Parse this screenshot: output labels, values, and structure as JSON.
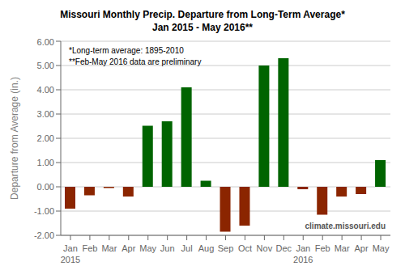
{
  "chart_data": {
    "type": "bar",
    "title": "Missouri Monthly Precip. Departure from Long-Term Average*",
    "subtitle": "Jan 2015 - May 2016**",
    "ylabel": "Departure from Average (in.)",
    "categories": [
      "Jan 2015",
      "Feb",
      "Mar",
      "Apr",
      "May",
      "Jun",
      "Jul",
      "Aug",
      "Sep",
      "Oct",
      "Nov",
      "Dec",
      "Jan 2016",
      "Feb",
      "Mar",
      "Apr",
      "May"
    ],
    "values": [
      -0.9,
      -0.35,
      -0.05,
      -0.4,
      2.52,
      2.7,
      4.1,
      0.25,
      -1.85,
      -1.6,
      5.0,
      5.3,
      -0.1,
      -1.15,
      -0.4,
      -0.3,
      1.1
    ],
    "colors": [
      "#8B2500",
      "#8B2500",
      "#8B2500",
      "#8B2500",
      "#006400",
      "#006400",
      "#006400",
      "#006400",
      "#8B2500",
      "#8B2500",
      "#006400",
      "#006400",
      "#8B2500",
      "#8B2500",
      "#8B2500",
      "#8B2500",
      "#006400"
    ],
    "ylim": [
      -2.0,
      6.0
    ],
    "yticks": [
      {
        "value": -2,
        "label": "-2.00"
      },
      {
        "value": -1,
        "label": "-1.00"
      },
      {
        "value": 0,
        "label": "0.00"
      },
      {
        "value": 1,
        "label": "1.00"
      },
      {
        "value": 2,
        "label": "2.00"
      },
      {
        "value": 3,
        "label": "3.00"
      },
      {
        "value": 4,
        "label": "4.00"
      },
      {
        "value": 5,
        "label": "5.00"
      },
      {
        "value": 6,
        "label": "6.00"
      }
    ],
    "grid": true,
    "annotations": [
      "*Long-term average: 1895-2010",
      "**Feb-May 2016 data are preliminary",
      "climate.missouri.edu"
    ]
  }
}
